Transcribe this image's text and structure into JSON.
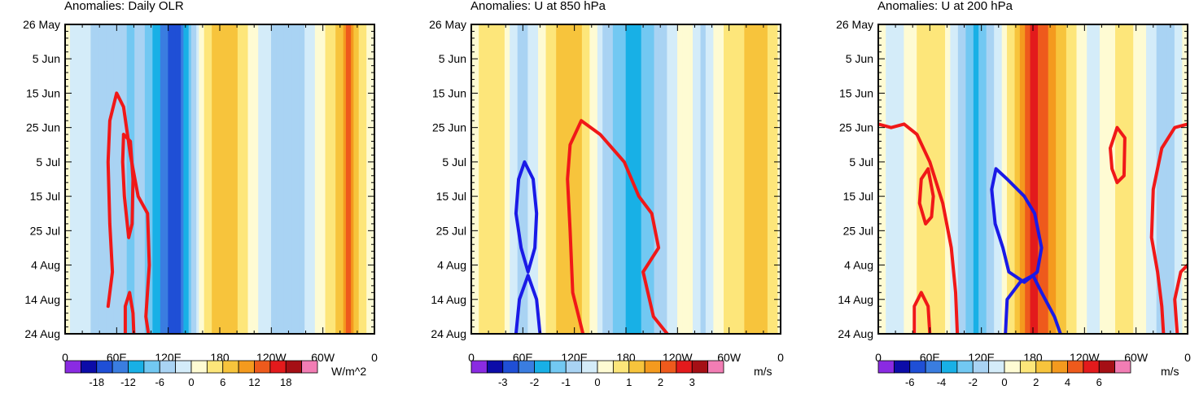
{
  "chart_data": [
    {
      "type": "heatmap",
      "title": "Anomalies: Daily OLR",
      "units": "W/m^2",
      "xlabel": "",
      "ylabel": "",
      "x_ticks": [
        "0",
        "60E",
        "120E",
        "180",
        "120W",
        "60W",
        "0"
      ],
      "x_values": [
        0,
        60,
        120,
        180,
        240,
        300,
        360
      ],
      "xlim": [
        0,
        360
      ],
      "y_ticks": [
        "26 May",
        "5 Jun",
        "15 Jun",
        "25 Jun",
        "5 Jul",
        "15 Jul",
        "25 Jul",
        "4 Aug",
        "14 Aug",
        "24 Aug"
      ],
      "y_values": [
        0,
        10,
        20,
        30,
        40,
        50,
        60,
        70,
        80,
        90
      ],
      "ylim": [
        0,
        90
      ],
      "colorbar_labels": [
        "-18",
        "-12",
        "-6",
        "0",
        "6",
        "12",
        "18"
      ],
      "colorbar_levels": [
        -21,
        -18,
        -15,
        -12,
        -9,
        -6,
        -3,
        0,
        3,
        6,
        9,
        12,
        15,
        18,
        21
      ],
      "colors": [
        "#8a2be2",
        "#0c0ca8",
        "#1f4fd6",
        "#3a7de0",
        "#18b0e6",
        "#72c8f2",
        "#a9d3f3",
        "#d4ecf9",
        "#fefbd3",
        "#fde67a",
        "#f7c43c",
        "#f49a1e",
        "#ee5a1c",
        "#e31a1c",
        "#a50f15",
        "#f27db4"
      ],
      "bands": [
        {
          "x": 0,
          "v": 1
        },
        {
          "x": 20,
          "v": -2
        },
        {
          "x": 40,
          "v": -4
        },
        {
          "x": 60,
          "v": -3
        },
        {
          "x": 75,
          "v": -7
        },
        {
          "x": 90,
          "v": -5
        },
        {
          "x": 105,
          "v": -10
        },
        {
          "x": 120,
          "v": -15
        },
        {
          "x": 132,
          "v": -17
        },
        {
          "x": 145,
          "v": -8
        },
        {
          "x": 160,
          "v": 2
        },
        {
          "x": 180,
          "v": 9
        },
        {
          "x": 200,
          "v": 6
        },
        {
          "x": 220,
          "v": 1
        },
        {
          "x": 240,
          "v": -3
        },
        {
          "x": 260,
          "v": -5
        },
        {
          "x": 280,
          "v": -3
        },
        {
          "x": 300,
          "v": 2
        },
        {
          "x": 320,
          "v": 7
        },
        {
          "x": 330,
          "v": 13
        },
        {
          "x": 345,
          "v": 4
        },
        {
          "x": 360,
          "v": 1
        }
      ],
      "contours": [
        {
          "color": "red",
          "points": [
            [
              50,
              82
            ],
            [
              55,
              72
            ],
            [
              52,
              58
            ],
            [
              50,
              40
            ],
            [
              52,
              28
            ],
            [
              60,
              20
            ],
            [
              68,
              24
            ],
            [
              76,
              38
            ],
            [
              85,
              50
            ],
            [
              96,
              55
            ],
            [
              98,
              70
            ],
            [
              94,
              85
            ],
            [
              97,
              90
            ]
          ]
        },
        {
          "color": "red",
          "points": [
            [
              68,
              32
            ],
            [
              76,
              34
            ],
            [
              79,
              45
            ],
            [
              78,
              58
            ],
            [
              74,
              62
            ],
            [
              69,
              50
            ],
            [
              67,
              40
            ],
            [
              68,
              32
            ]
          ]
        },
        {
          "color": "red",
          "points": [
            [
              70,
              90
            ],
            [
              70,
              82
            ],
            [
              75,
              78
            ],
            [
              79,
              84
            ],
            [
              80,
              90
            ]
          ]
        }
      ]
    },
    {
      "type": "heatmap",
      "title": "Anomalies: U at 850 hPa",
      "units": "m/s",
      "xlabel": "",
      "ylabel": "",
      "x_ticks": [
        "0",
        "60E",
        "120E",
        "180",
        "120W",
        "60W",
        "0"
      ],
      "x_values": [
        0,
        60,
        120,
        180,
        240,
        300,
        360
      ],
      "xlim": [
        0,
        360
      ],
      "y_ticks": [
        "26 May",
        "5 Jun",
        "15 Jun",
        "25 Jun",
        "5 Jul",
        "15 Jul",
        "25 Jul",
        "4 Aug",
        "14 Aug",
        "24 Aug"
      ],
      "y_values": [
        0,
        10,
        20,
        30,
        40,
        50,
        60,
        70,
        80,
        90
      ],
      "ylim": [
        0,
        90
      ],
      "colorbar_labels": [
        "-3",
        "-2",
        "-1",
        "0",
        "1",
        "2",
        "3"
      ],
      "colorbar_levels": [
        -3.5,
        -3,
        -2.5,
        -2,
        -1.5,
        -1,
        -0.5,
        0,
        0.5,
        1,
        1.5,
        2,
        2.5,
        3,
        3.5
      ],
      "colors": [
        "#8a2be2",
        "#0c0ca8",
        "#1f4fd6",
        "#3a7de0",
        "#18b0e6",
        "#72c8f2",
        "#a9d3f3",
        "#d4ecf9",
        "#fefbd3",
        "#fde67a",
        "#f7c43c",
        "#f49a1e",
        "#ee5a1c",
        "#e31a1c",
        "#a50f15",
        "#f27db4"
      ],
      "bands": [
        {
          "x": 0,
          "v": 0.3
        },
        {
          "x": 20,
          "v": 0.7
        },
        {
          "x": 40,
          "v": 0.5
        },
        {
          "x": 55,
          "v": -0.7
        },
        {
          "x": 70,
          "v": -0.4
        },
        {
          "x": 90,
          "v": 0.6
        },
        {
          "x": 110,
          "v": 1.5
        },
        {
          "x": 125,
          "v": 1.2
        },
        {
          "x": 140,
          "v": 0.4
        },
        {
          "x": 155,
          "v": -0.6
        },
        {
          "x": 175,
          "v": -1.3
        },
        {
          "x": 190,
          "v": -1.8
        },
        {
          "x": 210,
          "v": -1.1
        },
        {
          "x": 230,
          "v": -0.4
        },
        {
          "x": 250,
          "v": 0.3
        },
        {
          "x": 270,
          "v": -0.6
        },
        {
          "x": 290,
          "v": 0.4
        },
        {
          "x": 310,
          "v": 0.8
        },
        {
          "x": 330,
          "v": 1.4
        },
        {
          "x": 345,
          "v": 1.0
        },
        {
          "x": 360,
          "v": 0.3
        }
      ],
      "contours": [
        {
          "color": "red",
          "points": [
            [
              130,
              90
            ],
            [
              118,
              78
            ],
            [
              115,
              60
            ],
            [
              112,
              45
            ],
            [
              115,
              35
            ],
            [
              128,
              28
            ],
            [
              150,
              32
            ],
            [
              178,
              40
            ],
            [
              195,
              50
            ],
            [
              210,
              55
            ],
            [
              218,
              65
            ],
            [
              200,
              72
            ],
            [
              212,
              85
            ],
            [
              228,
              90
            ]
          ]
        },
        {
          "color": "blue",
          "points": [
            [
              58,
              65
            ],
            [
              52,
              55
            ],
            [
              55,
              45
            ],
            [
              62,
              40
            ],
            [
              72,
              45
            ],
            [
              76,
              55
            ],
            [
              74,
              65
            ],
            [
              66,
              72
            ],
            [
              58,
              65
            ]
          ]
        },
        {
          "color": "blue",
          "points": [
            [
              52,
              90
            ],
            [
              56,
              80
            ],
            [
              66,
              73
            ],
            [
              76,
              80
            ],
            [
              80,
              90
            ]
          ]
        }
      ]
    },
    {
      "type": "heatmap",
      "title": "Anomalies: U at 200 hPa",
      "units": "m/s",
      "xlabel": "",
      "ylabel": "",
      "x_ticks": [
        "0",
        "60E",
        "120E",
        "180",
        "120W",
        "60W",
        "0"
      ],
      "x_values": [
        0,
        60,
        120,
        180,
        240,
        300,
        360
      ],
      "xlim": [
        0,
        360
      ],
      "y_ticks": [
        "26 May",
        "5 Jun",
        "15 Jun",
        "25 Jun",
        "5 Jul",
        "15 Jul",
        "25 Jul",
        "4 Aug",
        "14 Aug",
        "24 Aug"
      ],
      "y_values": [
        0,
        10,
        20,
        30,
        40,
        50,
        60,
        70,
        80,
        90
      ],
      "ylim": [
        0,
        90
      ],
      "colorbar_labels": [
        "-6",
        "-4",
        "-2",
        "0",
        "2",
        "4",
        "6"
      ],
      "colorbar_levels": [
        -7,
        -6,
        -5,
        -4,
        -3,
        -2,
        -1,
        0,
        1,
        2,
        3,
        4,
        5,
        6,
        7
      ],
      "colors": [
        "#8a2be2",
        "#0c0ca8",
        "#1f4fd6",
        "#3a7de0",
        "#18b0e6",
        "#72c8f2",
        "#a9d3f3",
        "#d4ecf9",
        "#fefbd3",
        "#fde67a",
        "#f7c43c",
        "#f49a1e",
        "#ee5a1c",
        "#e31a1c",
        "#a50f15",
        "#f27db4"
      ],
      "bands": [
        {
          "x": 0,
          "v": 0.6
        },
        {
          "x": 20,
          "v": -0.6
        },
        {
          "x": 40,
          "v": 0.6
        },
        {
          "x": 55,
          "v": 1.8
        },
        {
          "x": 75,
          "v": 1.2
        },
        {
          "x": 90,
          "v": -0.8
        },
        {
          "x": 105,
          "v": -2.5
        },
        {
          "x": 115,
          "v": -3.2
        },
        {
          "x": 130,
          "v": -1.5
        },
        {
          "x": 150,
          "v": 0.8
        },
        {
          "x": 170,
          "v": 3.6
        },
        {
          "x": 180,
          "v": 5.3
        },
        {
          "x": 195,
          "v": 4.5
        },
        {
          "x": 210,
          "v": 2.8
        },
        {
          "x": 230,
          "v": 1.2
        },
        {
          "x": 250,
          "v": -0.5
        },
        {
          "x": 270,
          "v": 0.8
        },
        {
          "x": 290,
          "v": 1.5
        },
        {
          "x": 305,
          "v": 0.6
        },
        {
          "x": 320,
          "v": -0.8
        },
        {
          "x": 340,
          "v": -1.7
        },
        {
          "x": 360,
          "v": 0.5
        }
      ],
      "contours": [
        {
          "color": "red",
          "points": [
            [
              0,
              29
            ],
            [
              15,
              30
            ],
            [
              30,
              29
            ],
            [
              45,
              32
            ],
            [
              60,
              40
            ],
            [
              75,
              52
            ],
            [
              85,
              65
            ],
            [
              90,
              78
            ],
            [
              92,
              90
            ]
          ]
        },
        {
          "color": "red",
          "points": [
            [
              50,
              45
            ],
            [
              58,
              42
            ],
            [
              64,
              50
            ],
            [
              62,
              56
            ],
            [
              55,
              58
            ],
            [
              48,
              52
            ],
            [
              50,
              45
            ]
          ]
        },
        {
          "color": "red",
          "points": [
            [
              42,
              90
            ],
            [
              42,
              82
            ],
            [
              50,
              78
            ],
            [
              58,
              82
            ],
            [
              60,
              90
            ]
          ]
        },
        {
          "color": "red",
          "points": [
            [
              270,
              36
            ],
            [
              278,
              30
            ],
            [
              287,
              33
            ],
            [
              286,
              44
            ],
            [
              278,
              46
            ],
            [
              272,
              42
            ],
            [
              270,
              36
            ]
          ]
        },
        {
          "color": "red",
          "points": [
            [
              360,
              29
            ],
            [
              345,
              30
            ],
            [
              330,
              36
            ],
            [
              320,
              48
            ],
            [
              318,
              62
            ],
            [
              325,
              72
            ],
            [
              330,
              82
            ],
            [
              332,
              90
            ]
          ]
        },
        {
          "color": "red",
          "points": [
            [
              348,
              90
            ],
            [
              345,
              80
            ],
            [
              352,
              72
            ],
            [
              360,
              70
            ]
          ]
        },
        {
          "color": "blue",
          "points": [
            [
              132,
              48
            ],
            [
              137,
              42
            ],
            [
              150,
              45
            ],
            [
              170,
              50
            ],
            [
              182,
              55
            ],
            [
              190,
              65
            ],
            [
              185,
              72
            ],
            [
              170,
              75
            ],
            [
              152,
              72
            ],
            [
              145,
              65
            ],
            [
              136,
              58
            ],
            [
              132,
              48
            ]
          ]
        },
        {
          "color": "blue",
          "points": [
            [
              148,
              90
            ],
            [
              150,
              80
            ],
            [
              165,
              75
            ],
            [
              180,
              73
            ],
            [
              190,
              78
            ],
            [
              205,
              85
            ],
            [
              212,
              90
            ]
          ]
        }
      ]
    }
  ]
}
